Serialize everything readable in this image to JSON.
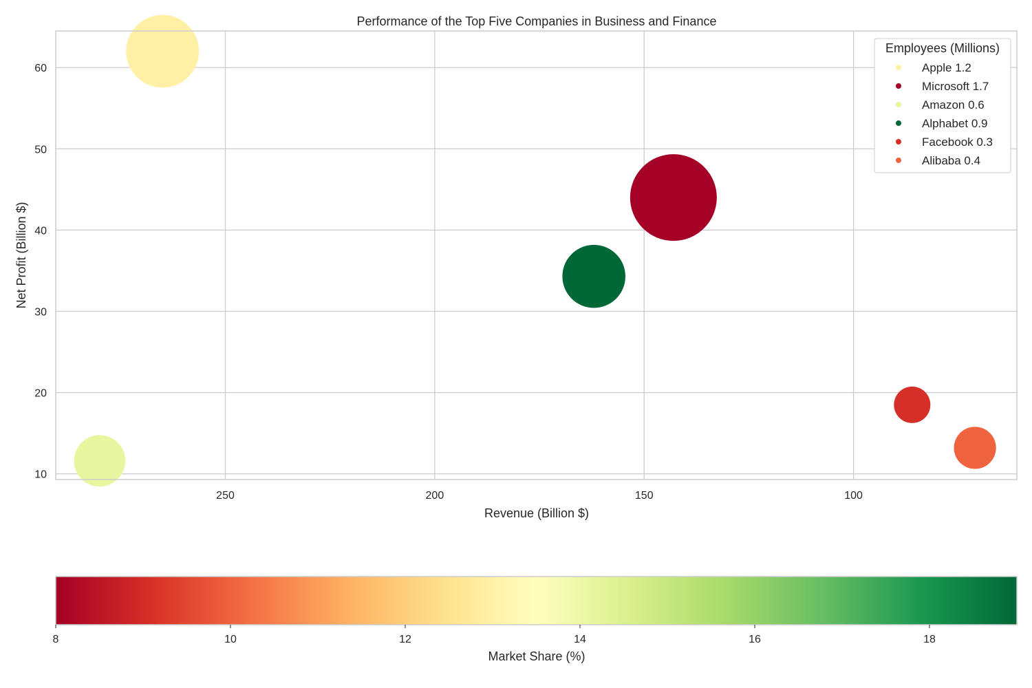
{
  "chart_data": {
    "type": "scatter",
    "title": "Performance of the Top Five Companies in Business and Finance",
    "xlabel": "Revenue (Billion $)",
    "ylabel": "Net Profit (Billion $)",
    "x_axis_inverted": true,
    "xlim": [
      290.5,
      61
    ],
    "ylim": [
      9.3,
      64.5
    ],
    "xticks": [
      250,
      200,
      150,
      100
    ],
    "yticks": [
      10,
      20,
      30,
      40,
      50,
      60
    ],
    "grid": true,
    "legend": {
      "title": "Employees (Millions)",
      "placement": "top-right"
    },
    "points": [
      {
        "name": "Apple",
        "label": "Apple 1.2",
        "revenue": 265,
        "net_profit": 62.0,
        "employees": 1.2,
        "market_share": 13.2,
        "color": "#fff0a6"
      },
      {
        "name": "Microsoft",
        "label": "Microsoft 1.7",
        "revenue": 143,
        "net_profit": 44.0,
        "employees": 1.7,
        "market_share": 8.0,
        "color": "#a50026"
      },
      {
        "name": "Amazon",
        "label": "Amazon 0.6",
        "revenue": 280,
        "net_profit": 11.6,
        "employees": 0.6,
        "market_share": 14.3,
        "color": "#e9f6a0"
      },
      {
        "name": "Alphabet",
        "label": "Alphabet 0.9",
        "revenue": 162,
        "net_profit": 34.3,
        "employees": 0.9,
        "market_share": 19.0,
        "color": "#006837"
      },
      {
        "name": "Facebook",
        "label": "Facebook 0.3",
        "revenue": 86,
        "net_profit": 18.5,
        "employees": 0.3,
        "market_share": 9.0,
        "color": "#d62f27"
      },
      {
        "name": "Alibaba",
        "label": "Alibaba 0.4",
        "revenue": 71,
        "net_profit": 13.2,
        "employees": 0.4,
        "market_share": 10.0,
        "color": "#ef633f"
      }
    ],
    "colorbar": {
      "label": "Market Share (%)",
      "range": [
        8,
        19
      ],
      "ticks": [
        8,
        10,
        12,
        14,
        16,
        18
      ],
      "colormap": "RdYlGn",
      "stops": [
        "#a50026",
        "#d73027",
        "#f46d43",
        "#fdae61",
        "#fee08b",
        "#ffffbf",
        "#d9ef8b",
        "#a6d96a",
        "#66bd63",
        "#1a9850",
        "#006837"
      ]
    }
  }
}
